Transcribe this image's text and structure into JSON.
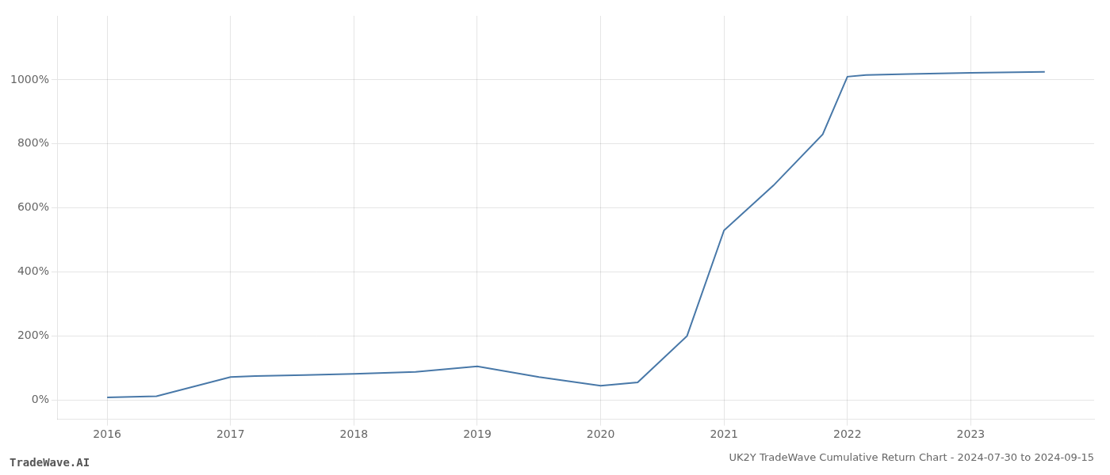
{
  "chart_data": {
    "type": "line",
    "title": "UK2Y TradeWave Cumulative Return Chart - 2024-07-30 to 2024-09-15",
    "annotations": [
      "TradeWave.AI"
    ],
    "x": [
      2016.0,
      2016.4,
      2017.0,
      2017.2,
      2017.6,
      2018.0,
      2018.5,
      2019.0,
      2019.5,
      2020.0,
      2020.3,
      2020.7,
      2021.0,
      2021.4,
      2021.8,
      2022.0,
      2022.15,
      2022.5,
      2023.0,
      2023.6
    ],
    "values": [
      8,
      12,
      72,
      75,
      78,
      82,
      88,
      105,
      72,
      45,
      55,
      200,
      530,
      670,
      830,
      1010,
      1015,
      1018,
      1022,
      1025
    ],
    "color": "#4878a8",
    "xlim": [
      2015.6,
      2024.0
    ],
    "ylim": [
      -60,
      1200
    ],
    "xticks": [
      2016,
      2017,
      2018,
      2019,
      2020,
      2021,
      2022,
      2023
    ],
    "yticks": [
      {
        "value": 0,
        "label": "0%"
      },
      {
        "value": 200,
        "label": "200%"
      },
      {
        "value": 400,
        "label": "400%"
      },
      {
        "value": 600,
        "label": "600%"
      },
      {
        "value": 800,
        "label": "800%"
      },
      {
        "value": 1000,
        "label": "1000%"
      }
    ],
    "grid": true
  }
}
